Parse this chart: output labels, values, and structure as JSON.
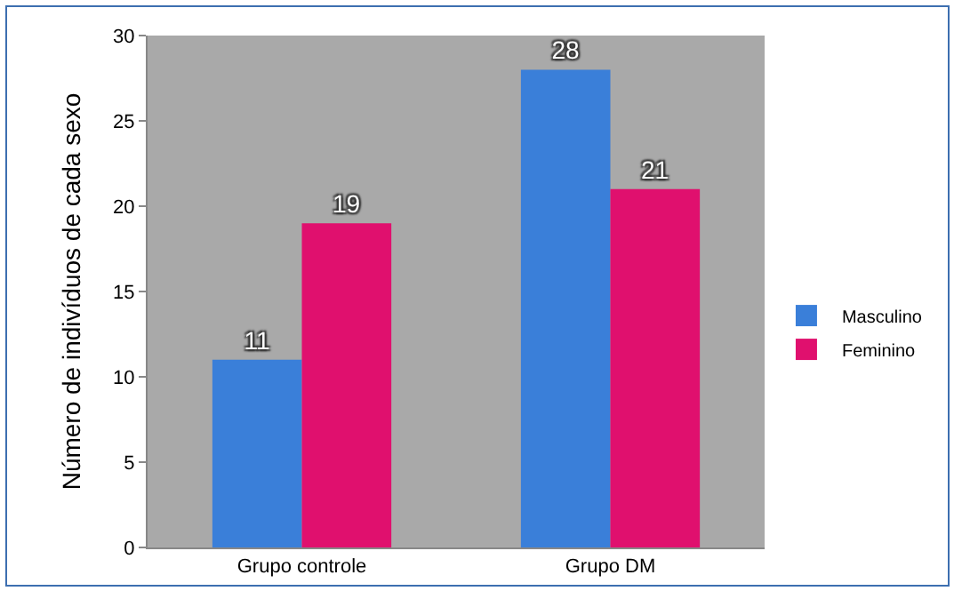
{
  "chart_data": {
    "type": "bar",
    "ylabel": "Número de indivíduos de cada sexo",
    "categories": [
      "Grupo controle",
      "Grupo DM"
    ],
    "series": [
      {
        "name": "Masculino",
        "color": "#3a7fd9",
        "values": [
          11,
          28
        ]
      },
      {
        "name": "Feminino",
        "color": "#e0106e",
        "values": [
          19,
          21
        ]
      }
    ],
    "ylim": [
      0,
      30
    ],
    "yticks": [
      0,
      5,
      10,
      15,
      20,
      25,
      30
    ],
    "grid": false,
    "legend": "right",
    "data_labels": true
  }
}
